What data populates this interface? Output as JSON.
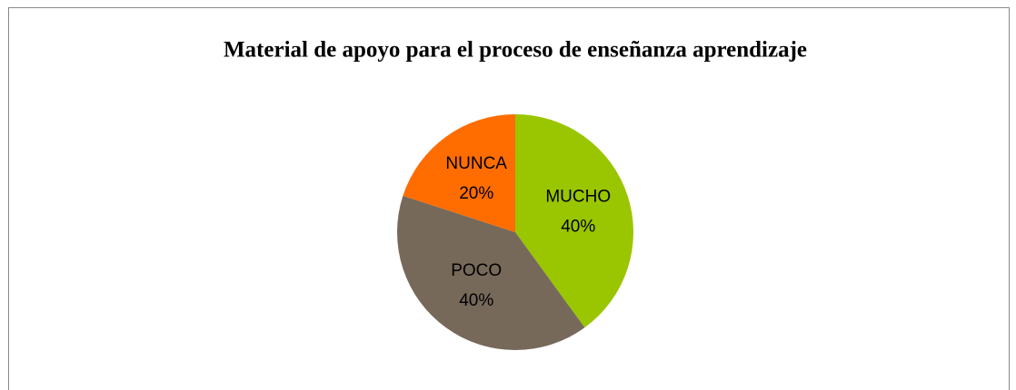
{
  "chart_data": {
    "type": "pie",
    "title": "Material de apoyo para el proceso de enseñanza aprendizaje",
    "categories": [
      "MUCHO",
      "POCO",
      "NUNCA"
    ],
    "values": [
      40,
      40,
      20
    ],
    "value_labels": [
      "40%",
      "40%",
      "20%"
    ],
    "colors": [
      "#99c600",
      "#76695a",
      "#ff6d00"
    ]
  }
}
